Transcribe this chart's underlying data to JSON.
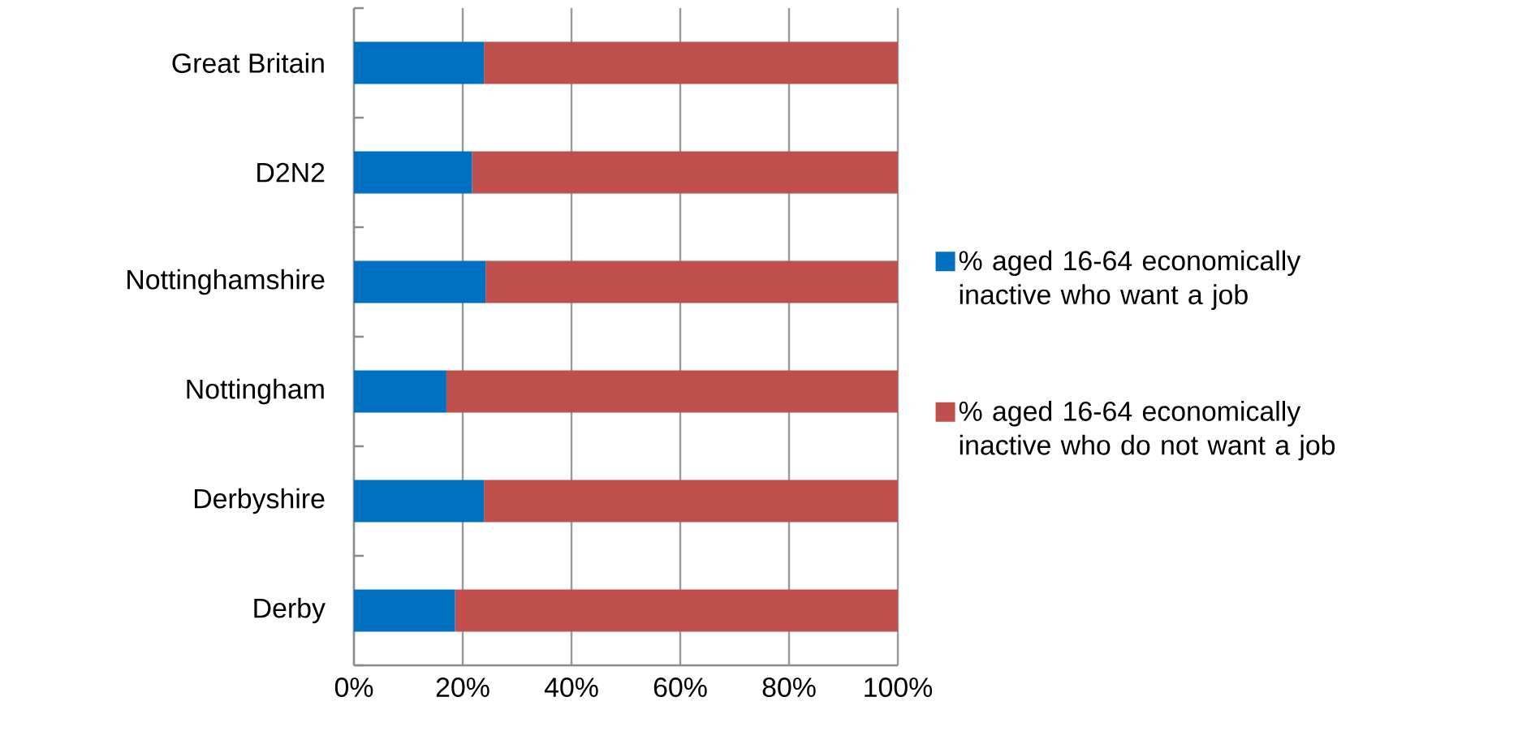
{
  "chart_data": {
    "type": "bar",
    "orientation": "horizontal",
    "stacked": true,
    "categories": [
      "Great Britain",
      "D2N2",
      "Nottinghamshire",
      "Nottingham",
      "Derbyshire",
      "Derby"
    ],
    "series": [
      {
        "name": "% aged 16-64 economically inactive who want a job",
        "color": "#0070c0",
        "values": [
          23.9,
          21.7,
          24.2,
          17.0,
          23.9,
          18.6
        ]
      },
      {
        "name": "% aged 16-64 economically inactive who do not want a job",
        "color": "#c0504d",
        "values": [
          76.1,
          78.3,
          75.8,
          83.0,
          76.1,
          81.4
        ]
      }
    ],
    "xlim": [
      0,
      100
    ],
    "xticks": [
      {
        "value": 0,
        "label": "0%"
      },
      {
        "value": 20,
        "label": "20%"
      },
      {
        "value": 40,
        "label": "40%"
      },
      {
        "value": 60,
        "label": "60%"
      },
      {
        "value": 80,
        "label": "80%"
      },
      {
        "value": 100,
        "label": "100%"
      }
    ],
    "grid": "x",
    "legend": "right"
  }
}
